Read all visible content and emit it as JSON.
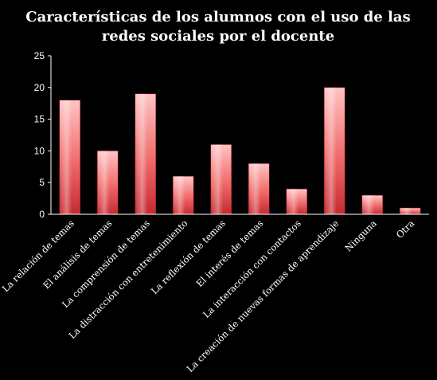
{
  "chart_data": {
    "type": "bar",
    "title": "Características de los alumnos con el uso de las redes sociales por el docente",
    "title_lines": [
      "Características de los alumnos con el uso de las",
      "redes sociales por el docente"
    ],
    "categories": [
      "La relación de temas",
      "El análisis de temas",
      "La comprensión de temas",
      "La distracción con entretenimiento",
      "La reflexión de temas",
      "El interés de temas",
      "La interacción con contactos",
      "La creación de nuevas formas de aprendizaje",
      "Ninguna",
      "Otra"
    ],
    "values": [
      18,
      10,
      19,
      6,
      11,
      8,
      4,
      20,
      3,
      1
    ],
    "ylim": [
      0,
      25
    ],
    "yticks": [
      0,
      5,
      10,
      15,
      20,
      25
    ],
    "xlabel": "",
    "ylabel": "",
    "grid": false,
    "legend": "none",
    "colors": {
      "bar_light": "#ffc4c4",
      "bar_mid": "#f06a6a",
      "bar_dark": "#c42a32",
      "background": "#000000",
      "text": "#ffffff"
    }
  }
}
